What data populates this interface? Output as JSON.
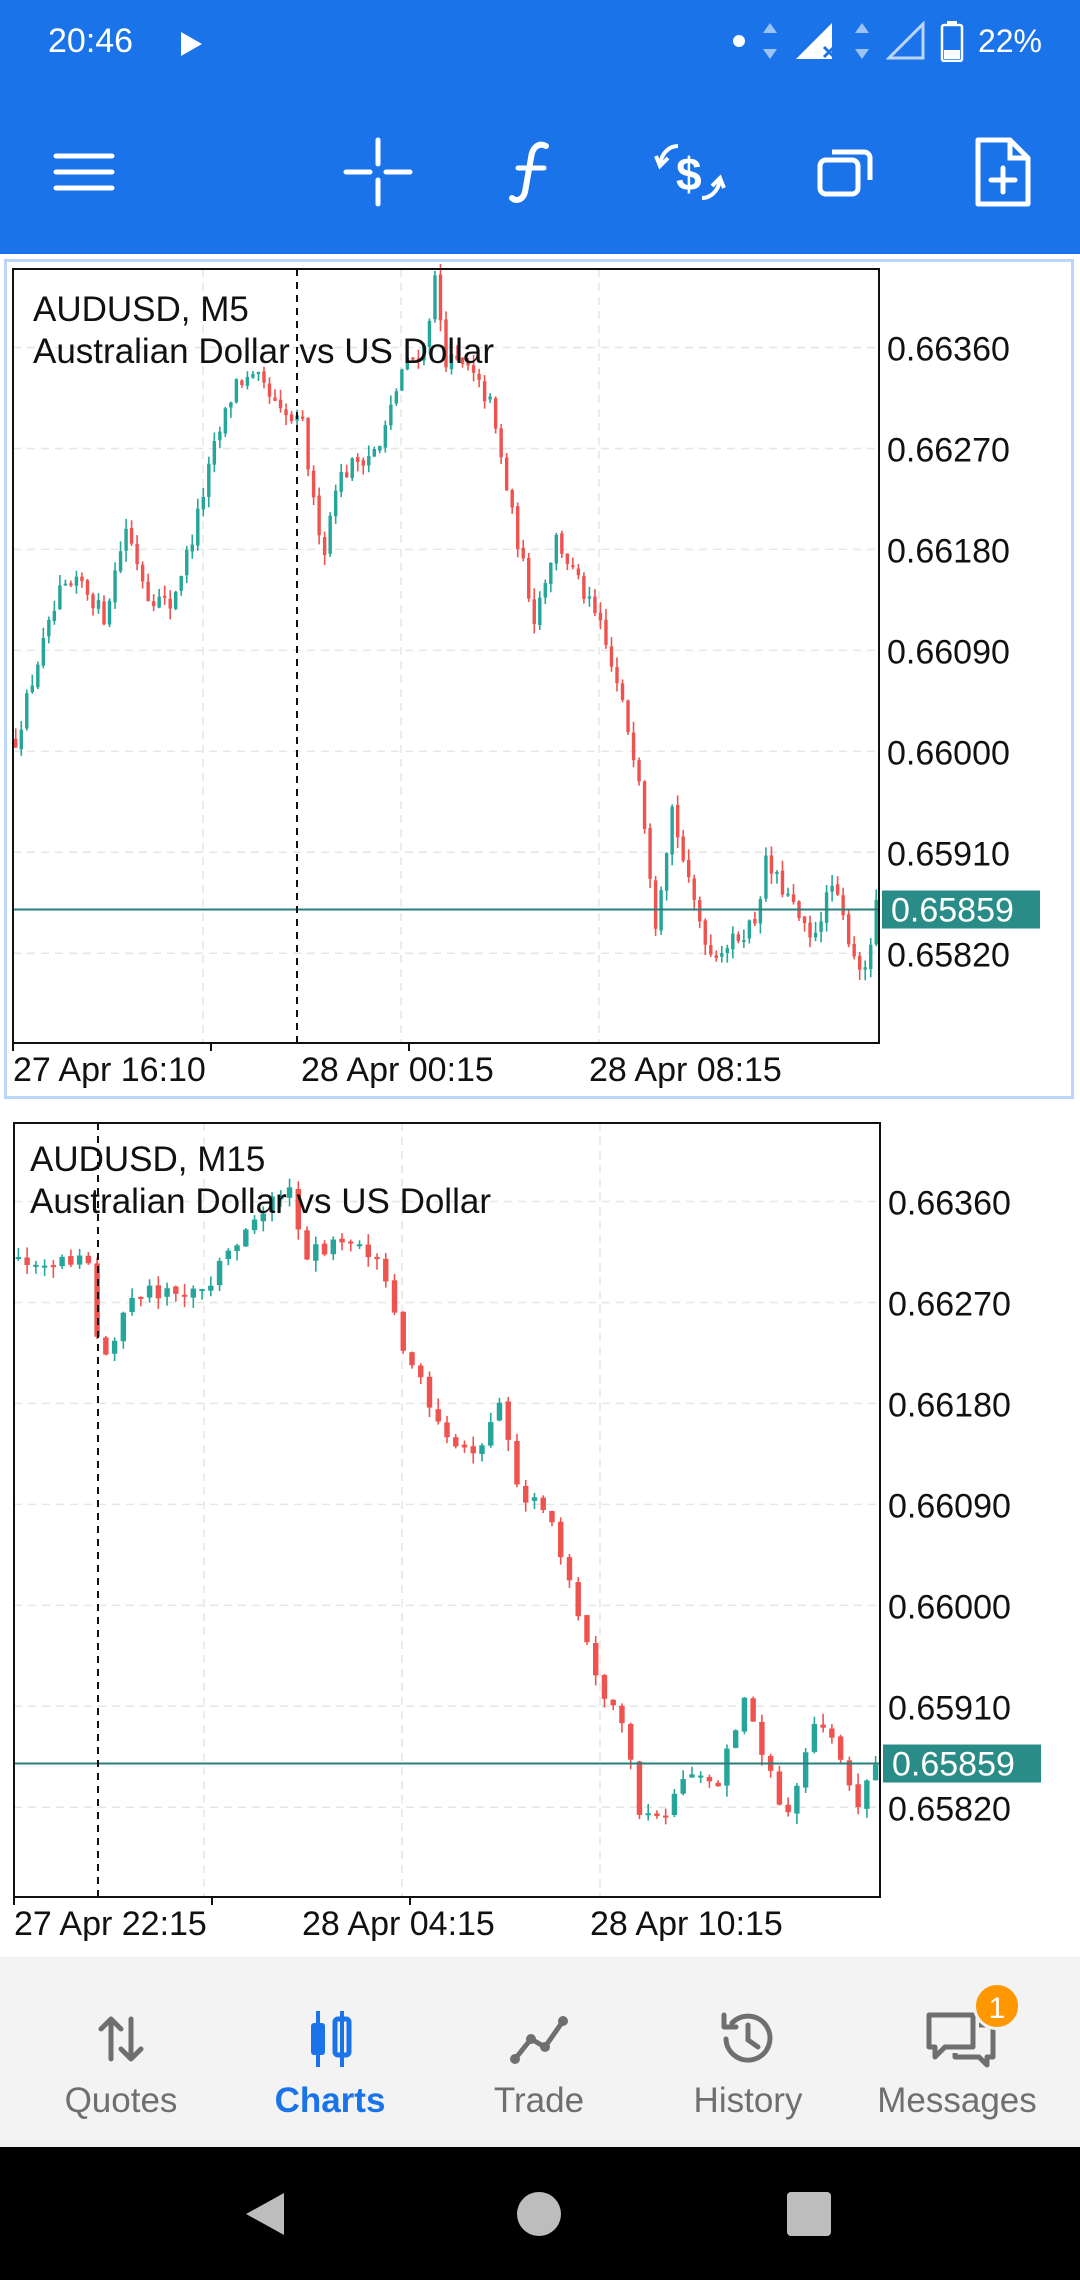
{
  "status_bar": {
    "time": "20:46",
    "battery": "22%",
    "icons": [
      "play-icon",
      "dot-icon",
      "data-arrows-icon",
      "signal-icon",
      "battery-icon"
    ]
  },
  "toolbar": {
    "icons": [
      "menu-icon",
      "crosshair-icon",
      "indicators-icon",
      "trade-icon",
      "windows-icon",
      "add-object-icon"
    ]
  },
  "chart1": {
    "symbol": "AUDUSD, M5",
    "description": "Australian Dollar vs US Dollar",
    "current_price": "0.65859",
    "price_labels": [
      "0.66360",
      "0.66270",
      "0.66180",
      "0.66090",
      "0.66000",
      "0.65910",
      "0.65820"
    ],
    "time_labels": [
      "27 Apr 16:10",
      "28 Apr 00:15",
      "28 Apr 08:15"
    ]
  },
  "chart2": {
    "symbol": "AUDUSD, M15",
    "description": "Australian Dollar vs US Dollar",
    "current_price": "0.65859",
    "price_labels": [
      "0.66360",
      "0.66270",
      "0.66180",
      "0.66090",
      "0.66000",
      "0.65910",
      "0.65820"
    ],
    "time_labels": [
      "27 Apr 22:15",
      "28 Apr 04:15",
      "28 Apr 10:15"
    ]
  },
  "chart_data": [
    {
      "type": "candlestick",
      "symbol": "AUDUSD",
      "timeframe": "M5",
      "ylim": [
        0.6574,
        0.6643
      ],
      "y_ticks": [
        0.6636,
        0.6627,
        0.6618,
        0.6609,
        0.66,
        0.6591,
        0.6582
      ],
      "current_price": 0.65859,
      "up_color": "#26a69a",
      "down_color": "#ef5350",
      "grid": true,
      "close_path": [
        [
          0,
          0.6601
        ],
        [
          4,
          0.6608
        ],
        [
          8,
          0.6614
        ],
        [
          12,
          0.6615
        ],
        [
          16,
          0.6612
        ],
        [
          20,
          0.662
        ],
        [
          24,
          0.6614
        ],
        [
          28,
          0.6613
        ],
        [
          32,
          0.6619
        ],
        [
          36,
          0.6627
        ],
        [
          40,
          0.6633
        ],
        [
          44,
          0.6633
        ],
        [
          48,
          0.663
        ],
        [
          52,
          0.6629
        ],
        [
          54,
          0.6622
        ],
        [
          56,
          0.6618
        ],
        [
          58,
          0.6624
        ],
        [
          62,
          0.6626
        ],
        [
          66,
          0.6627
        ],
        [
          70,
          0.6634
        ],
        [
          74,
          0.6636
        ],
        [
          76,
          0.6642
        ],
        [
          78,
          0.6635
        ],
        [
          82,
          0.6634
        ],
        [
          86,
          0.6631
        ],
        [
          90,
          0.6621
        ],
        [
          94,
          0.6612
        ],
        [
          98,
          0.6619
        ],
        [
          102,
          0.6615
        ],
        [
          106,
          0.6611
        ],
        [
          110,
          0.6604
        ],
        [
          113,
          0.6598
        ],
        [
          116,
          0.6585
        ],
        [
          119,
          0.6595
        ],
        [
          122,
          0.6588
        ],
        [
          126,
          0.6582
        ],
        [
          130,
          0.6583
        ],
        [
          134,
          0.6585
        ],
        [
          136,
          0.659
        ],
        [
          140,
          0.6587
        ],
        [
          144,
          0.6583
        ],
        [
          148,
          0.6588
        ],
        [
          152,
          0.6582
        ],
        [
          154,
          0.658
        ],
        [
          156,
          0.6586
        ]
      ]
    },
    {
      "type": "candlestick",
      "symbol": "AUDUSD",
      "timeframe": "M15",
      "ylim": [
        0.6574,
        0.6643
      ],
      "y_ticks": [
        0.6636,
        0.6627,
        0.6618,
        0.6609,
        0.66,
        0.6591,
        0.6582
      ],
      "current_price": 0.65859,
      "up_color": "#26a69a",
      "down_color": "#ef5350",
      "grid": true,
      "close_path": [
        [
          0,
          0.6631
        ],
        [
          6,
          0.6631
        ],
        [
          8,
          0.6631
        ],
        [
          9,
          0.6624
        ],
        [
          10,
          0.6622
        ],
        [
          12,
          0.6626
        ],
        [
          14,
          0.6628
        ],
        [
          18,
          0.6628
        ],
        [
          22,
          0.6629
        ],
        [
          26,
          0.6634
        ],
        [
          29,
          0.6636
        ],
        [
          31,
          0.6637
        ],
        [
          33,
          0.6631
        ],
        [
          37,
          0.6633
        ],
        [
          41,
          0.6631
        ],
        [
          44,
          0.6623
        ],
        [
          47,
          0.6618
        ],
        [
          50,
          0.6614
        ],
        [
          53,
          0.6614
        ],
        [
          55,
          0.6618
        ],
        [
          57,
          0.661
        ],
        [
          60,
          0.6609
        ],
        [
          63,
          0.6602
        ],
        [
          65,
          0.6597
        ],
        [
          67,
          0.6592
        ],
        [
          69,
          0.659
        ],
        [
          71,
          0.6582
        ],
        [
          74,
          0.6582
        ],
        [
          77,
          0.6585
        ],
        [
          80,
          0.6584
        ],
        [
          83,
          0.6592
        ],
        [
          86,
          0.6585
        ],
        [
          88,
          0.6581
        ],
        [
          91,
          0.6589
        ],
        [
          94,
          0.6587
        ],
        [
          96,
          0.6582
        ],
        [
          98,
          0.6586
        ]
      ]
    }
  ],
  "bottom_nav": {
    "items": [
      {
        "label": "Quotes",
        "icon": "quotes-icon",
        "active": false
      },
      {
        "label": "Charts",
        "icon": "charts-icon",
        "active": true
      },
      {
        "label": "Trade",
        "icon": "trade-icon",
        "active": false
      },
      {
        "label": "History",
        "icon": "history-icon",
        "active": false
      },
      {
        "label": "Messages",
        "icon": "messages-icon",
        "active": false
      }
    ],
    "messages_badge": "1"
  },
  "colors": {
    "accent": "#1a73e8",
    "bull": "#26a69a",
    "bear": "#ef5350",
    "price_line": "#2a7f7a",
    "badge": "#ff9800"
  }
}
